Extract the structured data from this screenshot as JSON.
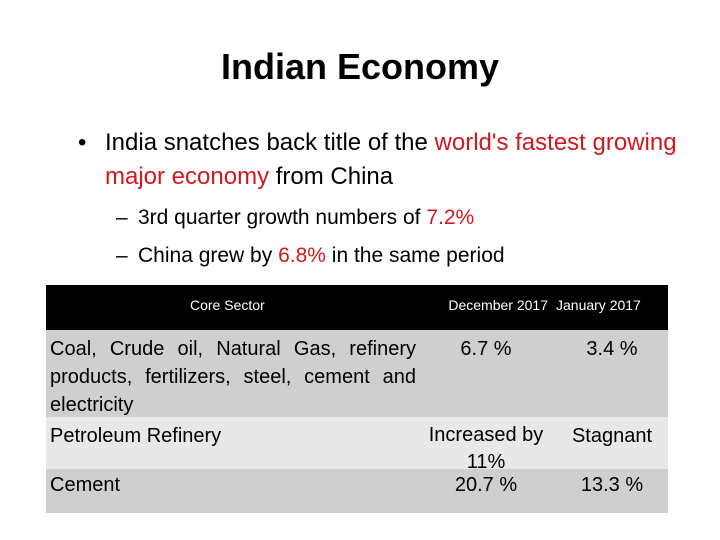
{
  "title": "Indian Economy",
  "bullet": {
    "part1": "India snatches back title of the ",
    "highlight": "world's fastest growing major economy",
    "part2": " from China"
  },
  "subpoints": [
    {
      "text": "3rd quarter growth numbers of ",
      "highlight": "7.2%",
      "rest": ""
    },
    {
      "text": "China grew by ",
      "highlight": "6.8%",
      "rest": " in the same period"
    }
  ],
  "table": {
    "headers": [
      "Core Sector",
      "December 2017",
      "January 2017"
    ],
    "rows": [
      {
        "sector": "Coal, Crude oil, Natural Gas, refinery products, fertilizers, steel, cement and electricity",
        "dec": "6.7 %",
        "jan": "3.4 %"
      },
      {
        "sector": "Petroleum Refinery",
        "dec": "Increased by 11%",
        "jan": "Stagnant"
      },
      {
        "sector": "Cement",
        "dec": "20.7 %",
        "jan": "13.3 %"
      }
    ]
  },
  "colors": {
    "highlight": "#d0191e",
    "header_bg": "#000000",
    "row_dark": "#cfcfcf",
    "row_light": "#e8e8e8"
  }
}
